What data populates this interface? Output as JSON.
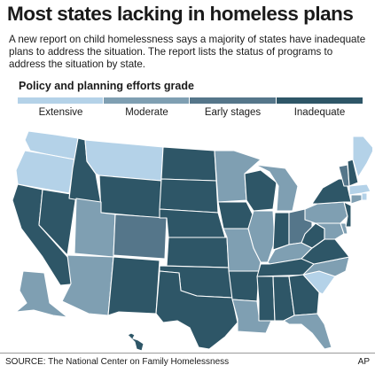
{
  "header": {
    "title": "Most states lacking in homeless plans",
    "subtitle": "A new report on child homelessness says a majority of states have inadequate plans to address the situation. The report lists the status of programs to address the situation by state."
  },
  "legend": {
    "title": "Policy and planning efforts grade",
    "items": [
      {
        "label": "Extensive",
        "color": "#b4d2e8"
      },
      {
        "label": "Moderate",
        "color": "#7f9fb2"
      },
      {
        "label": "Early stages",
        "color": "#55768a"
      },
      {
        "label": "Inadequate",
        "color": "#2e5667"
      }
    ]
  },
  "map": {
    "states": [
      {
        "id": "WA",
        "grade": "Extensive"
      },
      {
        "id": "OR",
        "grade": "Extensive"
      },
      {
        "id": "CA",
        "grade": "Inadequate"
      },
      {
        "id": "NV",
        "grade": "Inadequate"
      },
      {
        "id": "ID",
        "grade": "Inadequate"
      },
      {
        "id": "MT",
        "grade": "Extensive"
      },
      {
        "id": "WY",
        "grade": "Inadequate"
      },
      {
        "id": "UT",
        "grade": "Moderate"
      },
      {
        "id": "AZ",
        "grade": "Moderate"
      },
      {
        "id": "CO",
        "grade": "Early stages"
      },
      {
        "id": "NM",
        "grade": "Inadequate"
      },
      {
        "id": "ND",
        "grade": "Inadequate"
      },
      {
        "id": "SD",
        "grade": "Inadequate"
      },
      {
        "id": "NE",
        "grade": "Inadequate"
      },
      {
        "id": "KS",
        "grade": "Inadequate"
      },
      {
        "id": "OK",
        "grade": "Inadequate"
      },
      {
        "id": "TX",
        "grade": "Inadequate"
      },
      {
        "id": "MN",
        "grade": "Moderate"
      },
      {
        "id": "IA",
        "grade": "Inadequate"
      },
      {
        "id": "MO",
        "grade": "Moderate"
      },
      {
        "id": "AR",
        "grade": "Inadequate"
      },
      {
        "id": "LA",
        "grade": "Moderate"
      },
      {
        "id": "WI",
        "grade": "Inadequate"
      },
      {
        "id": "IL",
        "grade": "Moderate"
      },
      {
        "id": "MI",
        "grade": "Moderate"
      },
      {
        "id": "IN",
        "grade": "Inadequate"
      },
      {
        "id": "OH",
        "grade": "Early stages"
      },
      {
        "id": "KY",
        "grade": "Moderate"
      },
      {
        "id": "TN",
        "grade": "Inadequate"
      },
      {
        "id": "MS",
        "grade": "Inadequate"
      },
      {
        "id": "AL",
        "grade": "Inadequate"
      },
      {
        "id": "GA",
        "grade": "Inadequate"
      },
      {
        "id": "FL",
        "grade": "Moderate"
      },
      {
        "id": "SC",
        "grade": "Extensive"
      },
      {
        "id": "NC",
        "grade": "Moderate"
      },
      {
        "id": "VA",
        "grade": "Inadequate"
      },
      {
        "id": "WV",
        "grade": "Inadequate"
      },
      {
        "id": "PA",
        "grade": "Moderate"
      },
      {
        "id": "NY",
        "grade": "Inadequate"
      },
      {
        "id": "NJ",
        "grade": "Inadequate"
      },
      {
        "id": "DE",
        "grade": "Moderate"
      },
      {
        "id": "MD",
        "grade": "Moderate"
      },
      {
        "id": "CT",
        "grade": "Moderate"
      },
      {
        "id": "RI",
        "grade": "Extensive"
      },
      {
        "id": "MA",
        "grade": "Extensive"
      },
      {
        "id": "VT",
        "grade": "Early stages"
      },
      {
        "id": "NH",
        "grade": "Inadequate"
      },
      {
        "id": "ME",
        "grade": "Extensive"
      },
      {
        "id": "AK",
        "grade": "Moderate"
      },
      {
        "id": "HI",
        "grade": "Inadequate"
      }
    ]
  },
  "footer": {
    "source": "SOURCE: The National Center on Family Homelessness",
    "credit": "AP"
  }
}
